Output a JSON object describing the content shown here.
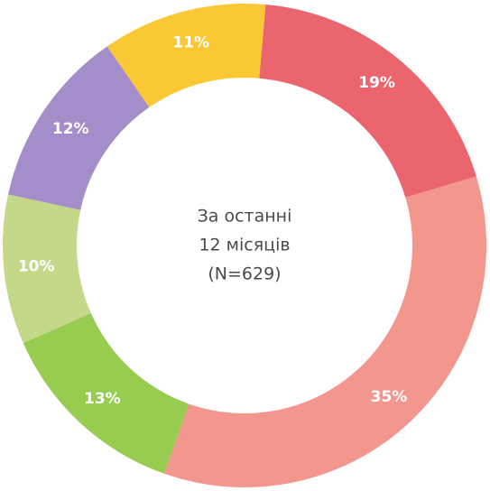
{
  "chart_data": {
    "type": "donut",
    "categories": [
      null,
      null,
      null,
      null,
      null,
      null
    ],
    "values": [
      19,
      35,
      13,
      10,
      12,
      11
    ],
    "value_labels": [
      "19%",
      "35%",
      "13%",
      "10%",
      "12%",
      "11%"
    ],
    "colors": [
      "#e9545e",
      "#f28c82",
      "#8cc63e",
      "#bcd47c",
      "#9a82c4",
      "#f8c21e"
    ],
    "center_text": [
      "За останні",
      "12 місяців",
      "(N=629)"
    ]
  }
}
